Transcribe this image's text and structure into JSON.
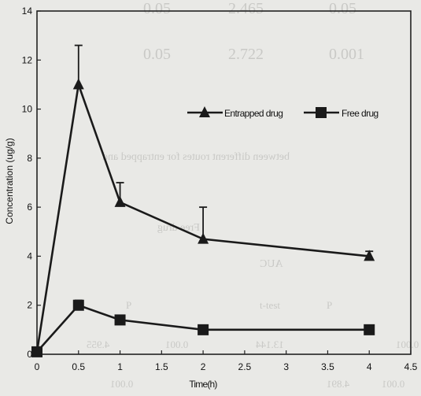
{
  "bleed_through": {
    "row1": [
      "0.05",
      "2.465",
      "0.05"
    ],
    "row2": [
      "0.001",
      "2.722",
      "0.05"
    ],
    "caption": "between different routes for entrapped and",
    "header": "Free drug",
    "auc": "AUC",
    "col_labels": [
      "P",
      "t-test",
      "P"
    ],
    "row3": [
      "0.001",
      "13.144",
      "0.001",
      "4.955"
    ],
    "row4": [
      "0.001",
      "4.891",
      "0.001"
    ]
  },
  "chart_data": {
    "type": "line",
    "xlabel": "Time(h)",
    "ylabel": "Concentration (ug/g)",
    "xlim": [
      0,
      4.5
    ],
    "ylim": [
      0,
      14
    ],
    "x_ticks": [
      "0",
      "0.5",
      "1",
      "1.5",
      "2",
      "2.5",
      "3",
      "3.5",
      "4",
      "4.5"
    ],
    "y_ticks": [
      "0",
      "2",
      "4",
      "6",
      "8",
      "10",
      "12",
      "14"
    ],
    "legend_position": "top-right",
    "grid": false,
    "series": [
      {
        "name": "Entrapped drug",
        "marker": "triangle",
        "x": [
          0,
          0.5,
          1,
          2,
          4
        ],
        "y": [
          0.1,
          11.0,
          6.2,
          4.7,
          4.0
        ],
        "err": [
          0,
          1.6,
          0.8,
          1.3,
          0.2
        ]
      },
      {
        "name": "Free drug",
        "marker": "square",
        "x": [
          0,
          0.5,
          1,
          2,
          4
        ],
        "y": [
          0.1,
          2.0,
          1.4,
          1.0,
          1.0
        ],
        "err": [
          0,
          0.2,
          0,
          0,
          0
        ]
      }
    ]
  }
}
